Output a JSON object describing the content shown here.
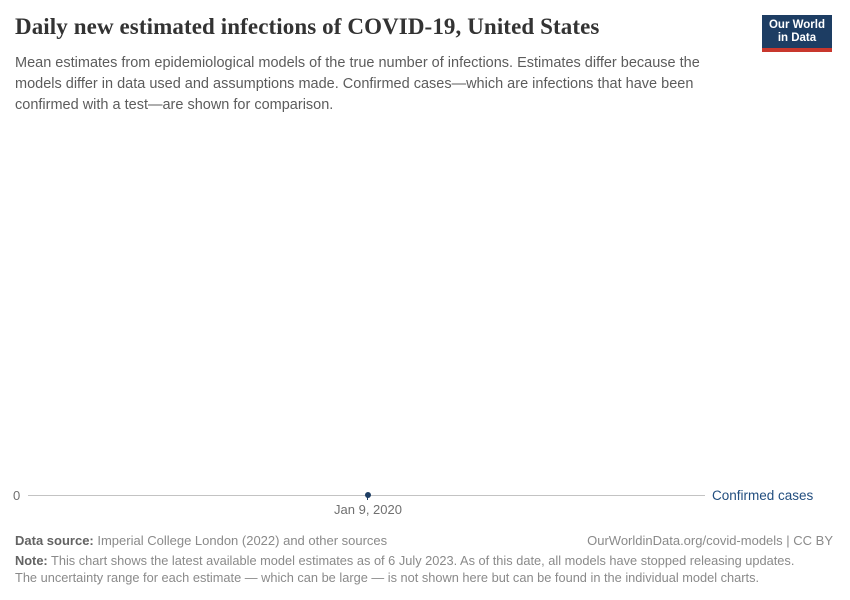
{
  "header": {
    "title": "Daily new estimated infections of COVID-19, United States",
    "subtitle_lines": [
      "Mean estimates from epidemiological models of the true number of infections. Estimates differ because the",
      "models differ in data used and assumptions made. Confirmed cases—which are infections that have been",
      "confirmed with a test—are shown for comparison."
    ],
    "logo": {
      "line1": "Our World",
      "line2": "in Data"
    }
  },
  "chart": {
    "y_zero_label": "0",
    "x_tick_label": "Jan 9, 2020",
    "series_label": "Confirmed cases"
  },
  "chart_data": {
    "type": "line",
    "title": "Daily new estimated infections of COVID-19, United States",
    "xlabel": "",
    "ylabel": "",
    "x_ticks": [
      "Jan 9, 2020"
    ],
    "y_ticks": [
      0
    ],
    "grid": false,
    "legend_position": "right of line end",
    "series": [
      {
        "name": "Confirmed cases",
        "x": [
          "Jan 9, 2020"
        ],
        "values": [
          0
        ]
      }
    ]
  },
  "footer": {
    "datasource_label": "Data source:",
    "datasource_text": " Imperial College London (2022) and other sources",
    "attribution": "OurWorldinData.org/covid-models | CC BY",
    "note_label": "Note:",
    "note_line1_rest": " This chart shows the latest available model estimates as of 6 July 2023. As of this date, all models have stopped releasing updates.",
    "note_line2": "The uncertainty range for each estimate — which can be large — is not shown here but can be found in the individual model charts."
  },
  "colors": {
    "logo_navy": "#1d3d63",
    "logo_red": "#c8372d",
    "series_navy": "#224e7f",
    "axis_gray": "#c3c3c3",
    "title_dark": "#333333",
    "subtitle_gray": "#5c5c5c",
    "footer_gray": "#8a8a8a"
  }
}
